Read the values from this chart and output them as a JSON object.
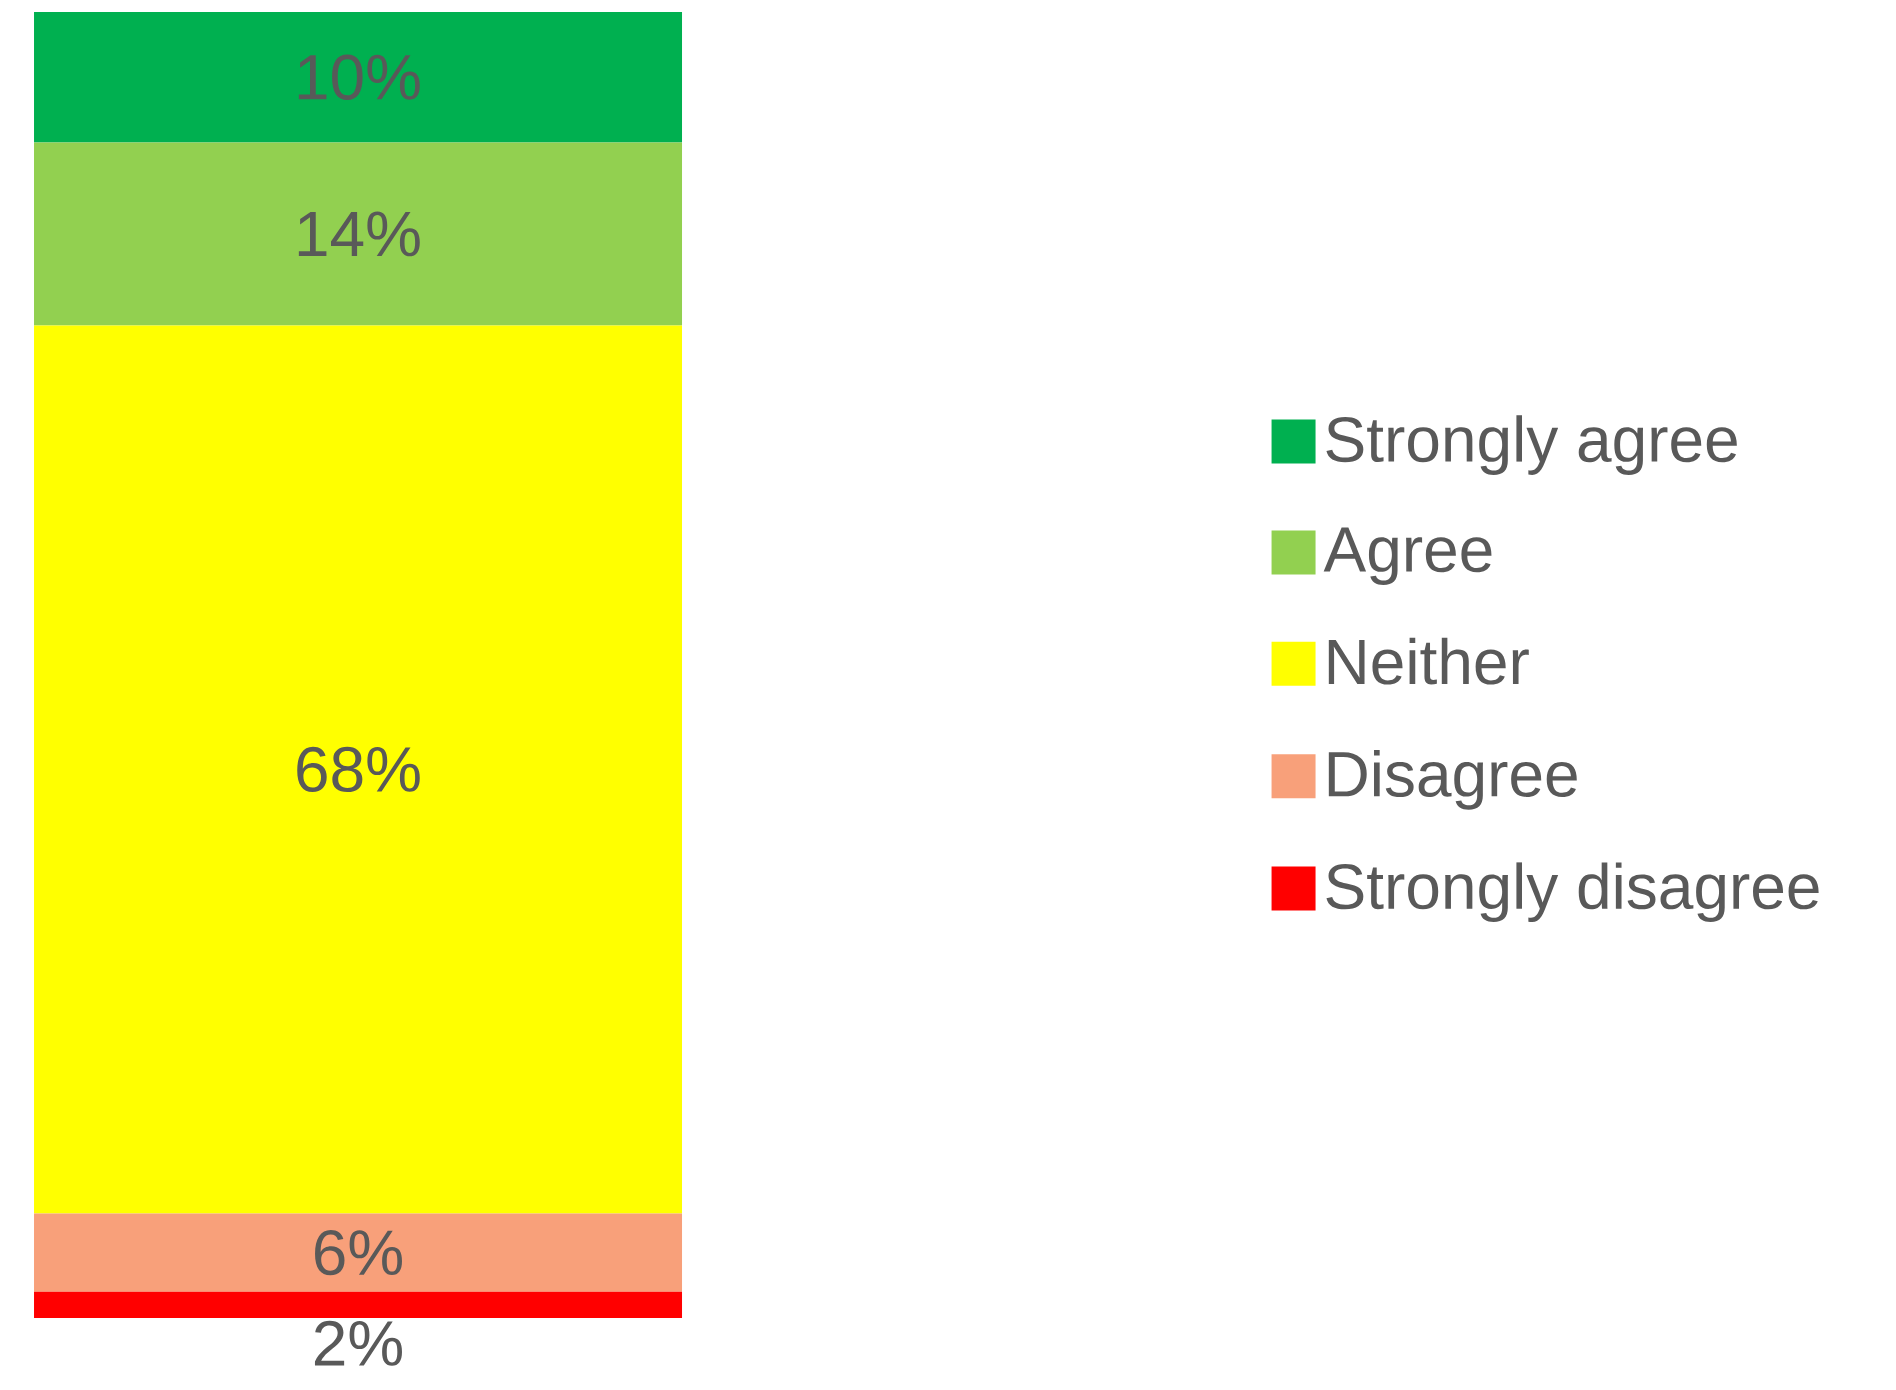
{
  "chart_data": {
    "type": "bar",
    "stacked": true,
    "legend": "right",
    "categories": [
      null
    ],
    "series": [
      {
        "name": "Strongly disagree",
        "color": "#ff0000",
        "values": [
          2
        ],
        "value_labels": [
          "2%"
        ]
      },
      {
        "name": "Disagree",
        "color": "#f8a07a",
        "values": [
          6
        ],
        "value_labels": [
          "6%"
        ]
      },
      {
        "name": "Neither",
        "color": "#ffff00",
        "values": [
          68
        ],
        "value_labels": [
          "68%"
        ]
      },
      {
        "name": "Agree",
        "color": "#92d050",
        "values": [
          14
        ],
        "value_labels": [
          "14%"
        ]
      },
      {
        "name": "Strongly agree",
        "color": "#00b050",
        "values": [
          10
        ],
        "value_labels": [
          "10%"
        ]
      }
    ]
  }
}
